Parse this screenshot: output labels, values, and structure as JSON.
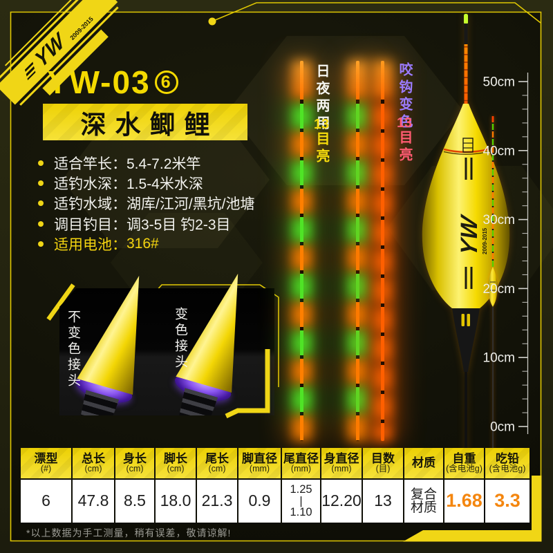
{
  "brand": {
    "logo": "YW",
    "years": "2009-2015"
  },
  "header": {
    "model": "YW-03",
    "variant": "6",
    "product_name": "深水鲫鲤"
  },
  "specs": [
    {
      "label": "适合竿长：",
      "value": "5.4-7.2米竿",
      "highlight": false
    },
    {
      "label": "适钓水深：",
      "value": "1.5-4米水深",
      "highlight": false
    },
    {
      "label": "适钓水域：",
      "value": "湖库/江河/黑坑/池塘",
      "highlight": false
    },
    {
      "label": "调目钓目：",
      "value": "调3-5目 钓2-3目",
      "highlight": false
    },
    {
      "label": "适用电池：",
      "value": "316#",
      "highlight": true
    }
  ],
  "connector_section": {
    "left_label": "不变色接头",
    "right_label": "变色接头"
  },
  "tail_section": {
    "day_night_label": "日夜两用",
    "day_night_bright": "13目亮",
    "bite_label": "咬钩变色",
    "bite_bright": "13目亮"
  },
  "float_graphic": {
    "logo": "YW",
    "years": "2009-2015"
  },
  "ruler": {
    "labels": [
      "50cm",
      "40cm",
      "30cm",
      "20cm",
      "10cm",
      "0cm"
    ]
  },
  "table": {
    "columns": [
      {
        "title": "漂型",
        "unit": "(#)",
        "value": "6"
      },
      {
        "title": "总长",
        "unit": "(cm)",
        "value": "47.8"
      },
      {
        "title": "身长",
        "unit": "(cm)",
        "value": "8.5"
      },
      {
        "title": "脚长",
        "unit": "(cm)",
        "value": "18.0"
      },
      {
        "title": "尾长",
        "unit": "(cm)",
        "value": "21.3"
      },
      {
        "title": "脚直径",
        "unit": "(mm)",
        "value": "0.9"
      },
      {
        "title": "尾直径",
        "unit": "(mm)",
        "value": "1.25\n|\n1.10"
      },
      {
        "title": "身直径",
        "unit": "(mm)",
        "value": "12.20"
      },
      {
        "title": "目数",
        "unit": "(目)",
        "value": "13"
      },
      {
        "title": "材质",
        "unit": "",
        "value": "复合\n材质"
      },
      {
        "title": "自重",
        "unit": "(含电池g)",
        "value": "1.68",
        "highlight": true
      },
      {
        "title": "吃铅",
        "unit": "(含电池g)",
        "value": "3.3",
        "highlight": true
      }
    ]
  },
  "footer": {
    "note": "*以上数据为手工测量，稍有误差，敬请谅解!"
  },
  "colors": {
    "accent_yellow": "#f0d616",
    "value_orange": "#f4860f",
    "tail_orange": "#ff7a00",
    "tail_green": "#4fe426",
    "bite_purple": "#9b7bff",
    "bite_pink": "#ff5b72"
  }
}
